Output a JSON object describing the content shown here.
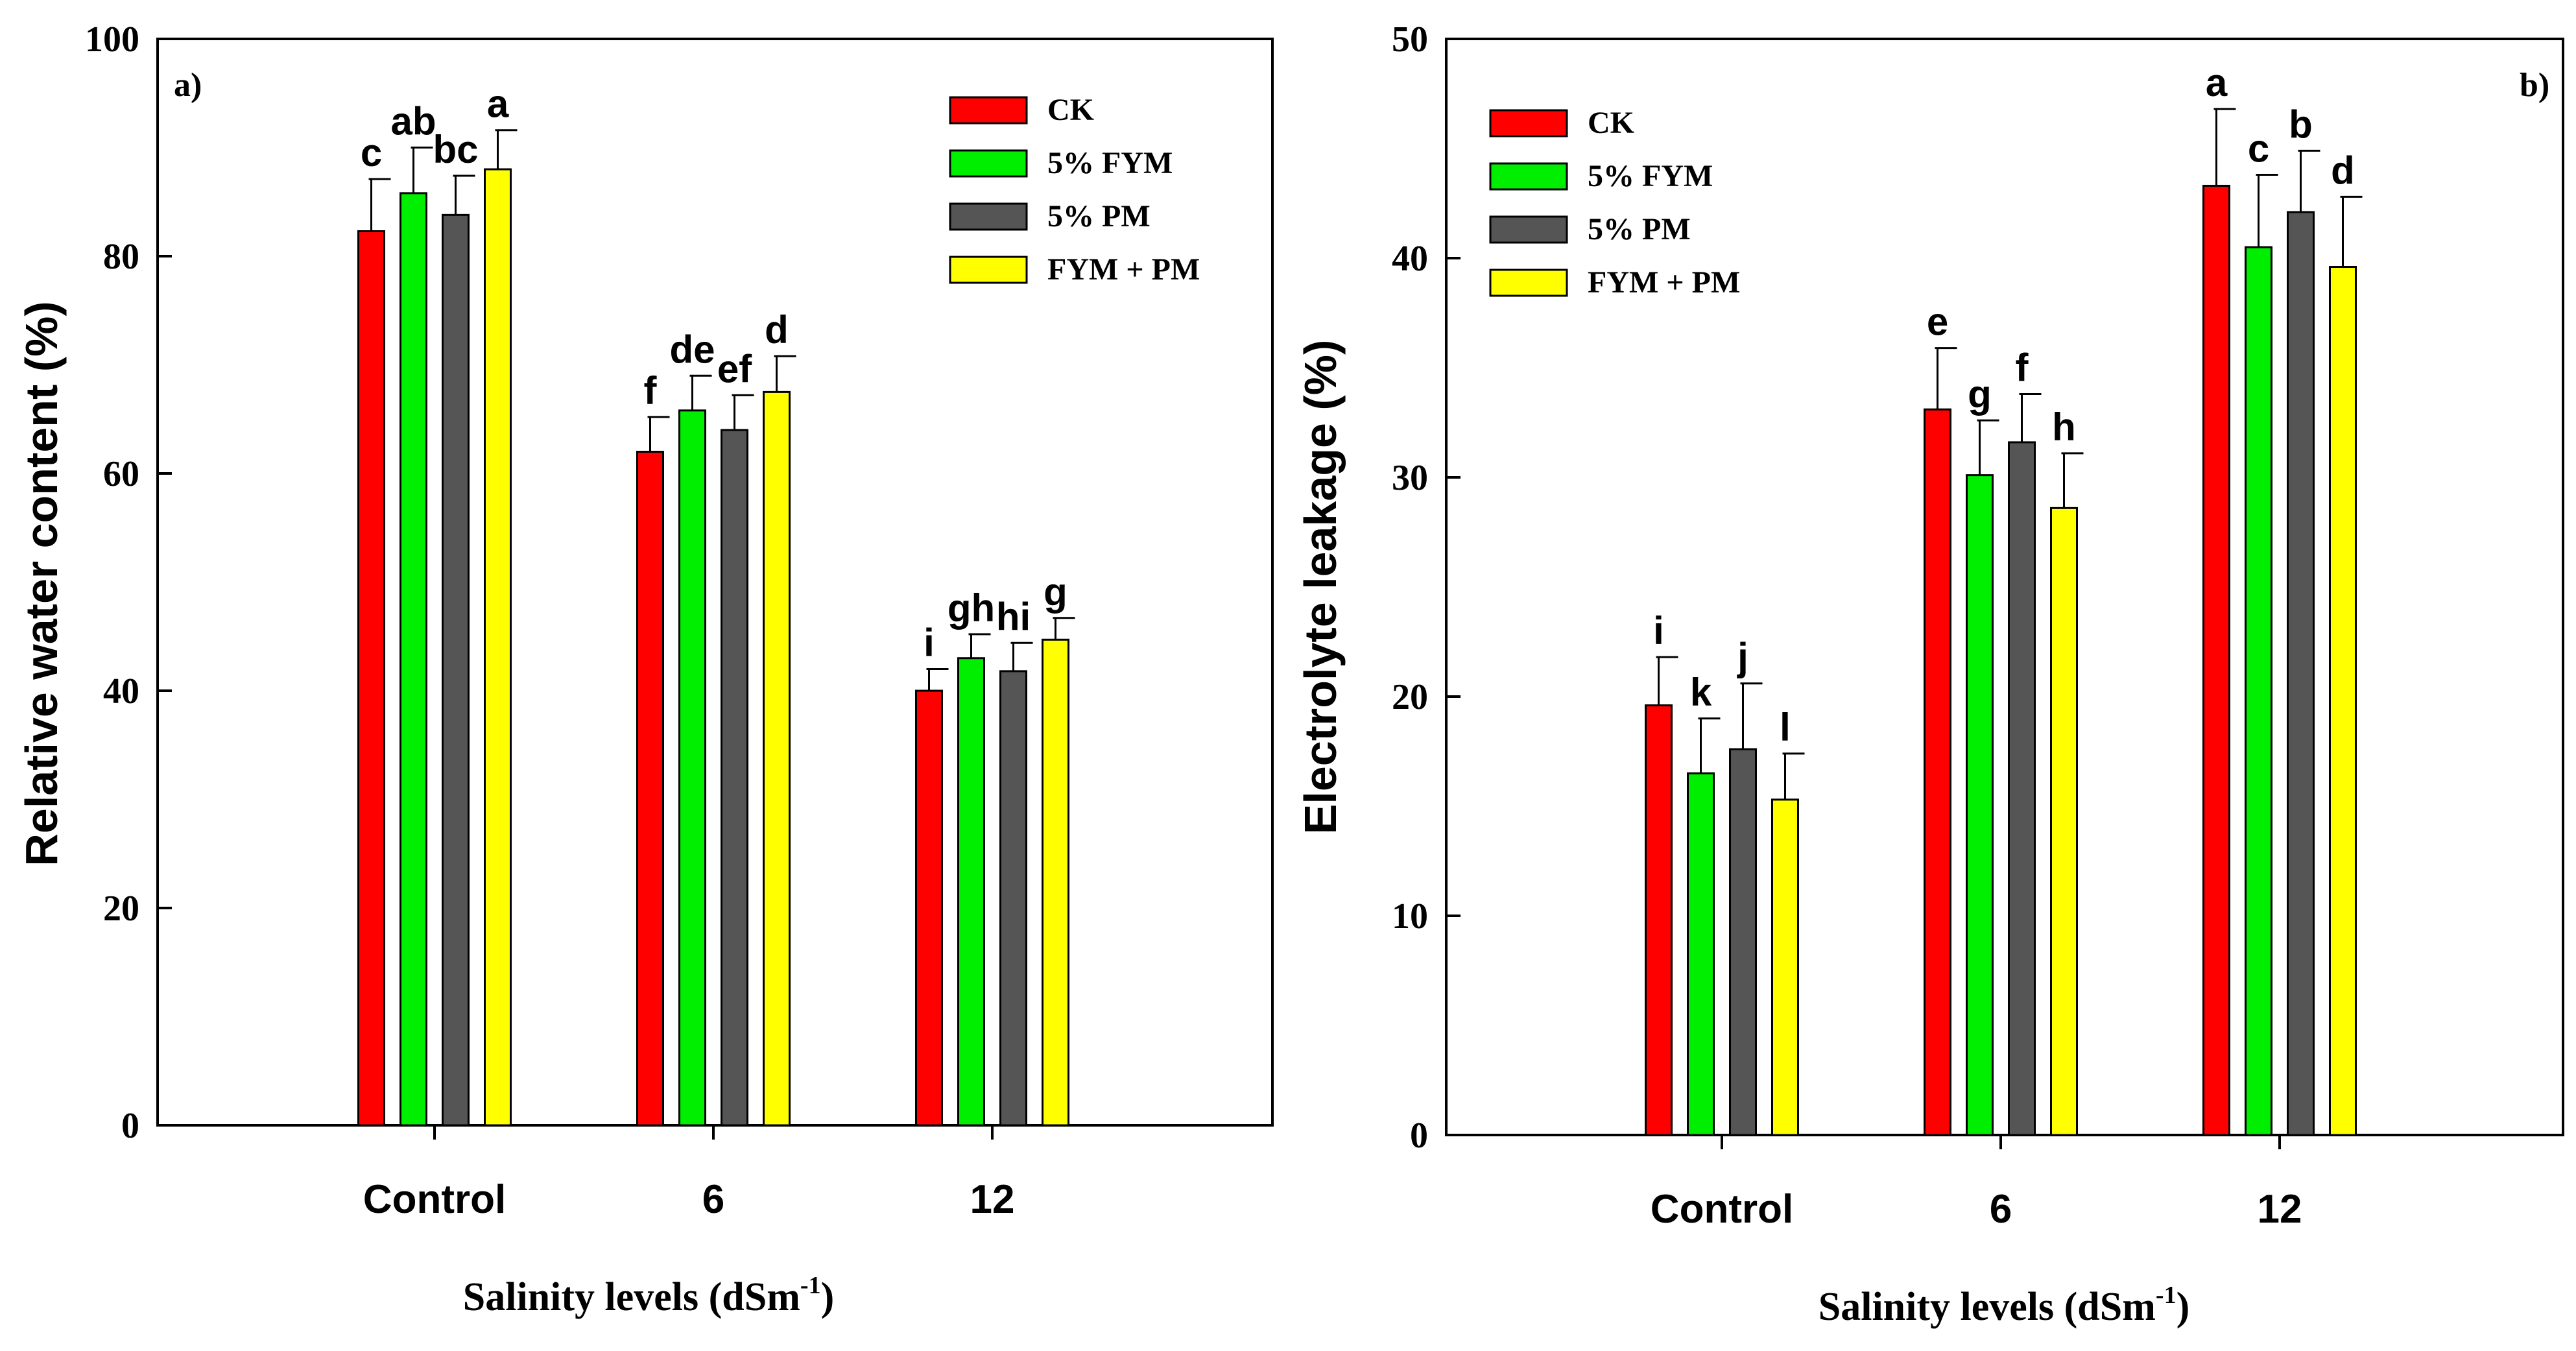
{
  "chart_data": [
    {
      "type": "bar",
      "panel_label": "a)",
      "title": "",
      "xlabel": "Salinity levels (dSm",
      "xlabel_sup": "-1",
      "xlabel_close": ")",
      "ylabel": "Relative water content (%)",
      "ylim": [
        0,
        100
      ],
      "yticks": [
        0,
        20,
        40,
        60,
        80,
        100
      ],
      "categories": [
        "Control",
        "6",
        "12"
      ],
      "legend_position": "top-right",
      "series": [
        {
          "name": "CK",
          "color": "#ff0000",
          "values": [
            82.3,
            62.0,
            40.0
          ],
          "errors": [
            4.8,
            3.2,
            2.0
          ],
          "labels": [
            "c",
            "f",
            "i"
          ]
        },
        {
          "name": "5% FYM",
          "color": "#00ee00",
          "values": [
            85.8,
            65.8,
            43.0
          ],
          "errors": [
            4.2,
            3.2,
            2.2
          ],
          "labels": [
            "ab",
            "de",
            "gh"
          ]
        },
        {
          "name": "5% PM",
          "color": "#555555",
          "values": [
            83.8,
            64.0,
            41.8
          ],
          "errors": [
            3.6,
            3.2,
            2.6
          ],
          "labels": [
            "bc",
            "ef",
            "hi"
          ]
        },
        {
          "name": "FYM + PM",
          "color": "#ffff00",
          "values": [
            88.0,
            67.5,
            44.7
          ],
          "errors": [
            3.6,
            3.3,
            2.0
          ],
          "labels": [
            "a",
            "d",
            "g"
          ]
        }
      ]
    },
    {
      "type": "bar",
      "panel_label": "b)",
      "title": "",
      "xlabel": "Salinity levels (dSm",
      "xlabel_sup": "-1",
      "xlabel_close": ")",
      "ylabel": "Electrolyte leakage (%)",
      "ylim": [
        0,
        50
      ],
      "yticks": [
        0,
        10,
        20,
        30,
        40,
        50
      ],
      "categories": [
        "Control",
        "6",
        "12"
      ],
      "legend_position": "top-left",
      "series": [
        {
          "name": "CK",
          "color": "#ff0000",
          "values": [
            19.6,
            33.1,
            43.3
          ],
          "errors": [
            2.2,
            2.8,
            3.5
          ],
          "labels": [
            "i",
            "e",
            "a"
          ]
        },
        {
          "name": "5% FYM",
          "color": "#00ee00",
          "values": [
            16.5,
            30.1,
            40.5
          ],
          "errors": [
            2.5,
            2.5,
            3.3
          ],
          "labels": [
            "k",
            "g",
            "c"
          ]
        },
        {
          "name": "5% PM",
          "color": "#555555",
          "values": [
            17.6,
            31.6,
            42.1
          ],
          "errors": [
            3.0,
            2.2,
            2.8
          ],
          "labels": [
            "j",
            "f",
            "b"
          ]
        },
        {
          "name": "FYM + PM",
          "color": "#ffff00",
          "values": [
            15.3,
            28.6,
            39.6
          ],
          "errors": [
            2.1,
            2.5,
            3.2
          ],
          "labels": [
            "l",
            "h",
            "d"
          ]
        }
      ]
    }
  ]
}
